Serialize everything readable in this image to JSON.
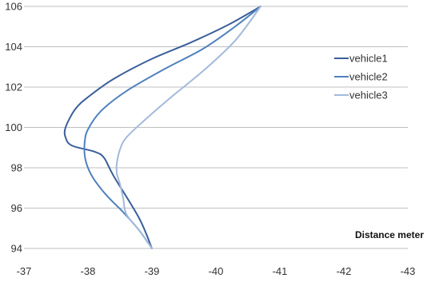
{
  "chart_data": {
    "type": "line",
    "title": "",
    "xlabel": "Distance meter",
    "ylabel": "",
    "x_ticks": [
      -37,
      -38,
      -39,
      -40,
      -41,
      -42,
      -43
    ],
    "y_ticks": [
      94,
      96,
      98,
      100,
      102,
      104,
      106
    ],
    "xlim": [
      -37,
      -43
    ],
    "ylim": [
      94,
      106
    ],
    "grid": "horizontal",
    "legend_position": "right",
    "series": [
      {
        "name": "vehicle1",
        "color": "#3B5F9B",
        "points": [
          [
            -39.0,
            94.0
          ],
          [
            -38.8,
            95.5
          ],
          [
            -38.4,
            97.6
          ],
          [
            -38.25,
            98.5
          ],
          [
            -38.1,
            98.8
          ],
          [
            -37.75,
            99.1
          ],
          [
            -37.65,
            99.5
          ],
          [
            -37.65,
            100.0
          ],
          [
            -37.8,
            100.9
          ],
          [
            -38.0,
            101.5
          ],
          [
            -38.4,
            102.4
          ],
          [
            -39.0,
            103.4
          ],
          [
            -39.6,
            104.2
          ],
          [
            -40.2,
            105.1
          ],
          [
            -40.7,
            106.0
          ]
        ]
      },
      {
        "name": "vehicle2",
        "color": "#4F81BD",
        "points": [
          [
            -39.0,
            94.0
          ],
          [
            -38.8,
            94.9
          ],
          [
            -38.55,
            95.8
          ],
          [
            -38.3,
            96.6
          ],
          [
            -38.1,
            97.4
          ],
          [
            -38.0,
            98.0
          ],
          [
            -37.95,
            98.6
          ],
          [
            -37.95,
            99.3
          ],
          [
            -38.0,
            99.9
          ],
          [
            -38.2,
            100.8
          ],
          [
            -38.6,
            101.8
          ],
          [
            -39.2,
            102.9
          ],
          [
            -39.8,
            103.9
          ],
          [
            -40.3,
            105.0
          ],
          [
            -40.7,
            106.0
          ]
        ]
      },
      {
        "name": "vehicle3",
        "color": "#A3B9DB",
        "points": [
          [
            -39.0,
            94.0
          ],
          [
            -38.8,
            94.9
          ],
          [
            -38.6,
            95.7
          ],
          [
            -38.55,
            96.5
          ],
          [
            -38.5,
            97.2
          ],
          [
            -38.45,
            97.7
          ],
          [
            -38.45,
            97.8
          ],
          [
            -38.45,
            98.2
          ],
          [
            -38.5,
            98.9
          ],
          [
            -38.6,
            99.5
          ],
          [
            -38.9,
            100.4
          ],
          [
            -39.3,
            101.5
          ],
          [
            -39.8,
            102.8
          ],
          [
            -40.3,
            104.3
          ],
          [
            -40.7,
            106.0
          ]
        ]
      }
    ]
  }
}
